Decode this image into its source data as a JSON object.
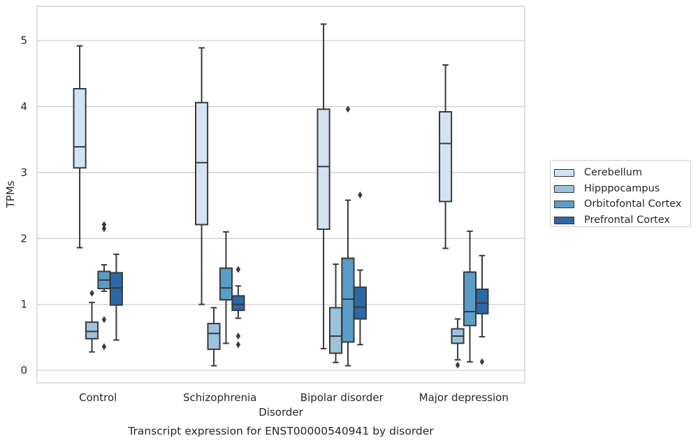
{
  "chart_data": {
    "type": "box",
    "title": "Transcript expression for ENST00000540941 by disorder",
    "xlabel": "Disorder",
    "ylabel": "TPMs",
    "ylim": [
      -0.19,
      5.52
    ],
    "yticks": [
      0,
      1,
      2,
      3,
      4,
      5
    ],
    "grid": true,
    "legend_position": "right",
    "categories": [
      "Control",
      "Schizophrenia",
      "Bipolar disorder",
      "Major depression"
    ],
    "series": [
      {
        "name": "Cerebellum",
        "color": "#d4e3f2",
        "boxes": [
          {
            "whislo": 1.86,
            "q1": 3.07,
            "med": 3.39,
            "q3": 4.27,
            "whishi": 4.92,
            "fliers": []
          },
          {
            "whislo": 1.0,
            "q1": 2.21,
            "med": 3.15,
            "q3": 4.06,
            "whishi": 4.89,
            "fliers": []
          },
          {
            "whislo": 0.33,
            "q1": 2.14,
            "med": 3.09,
            "q3": 3.96,
            "whishi": 5.25,
            "fliers": []
          },
          {
            "whislo": 1.85,
            "q1": 2.56,
            "med": 3.44,
            "q3": 3.92,
            "whishi": 4.63,
            "fliers": []
          }
        ]
      },
      {
        "name": "Hipppocampus",
        "color": "#9cc2dc",
        "boxes": [
          {
            "whislo": 0.28,
            "q1": 0.48,
            "med": 0.59,
            "q3": 0.73,
            "whishi": 1.03,
            "fliers": [
              1.17
            ]
          },
          {
            "whislo": 0.07,
            "q1": 0.32,
            "med": 0.56,
            "q3": 0.71,
            "whishi": 0.95,
            "fliers": []
          },
          {
            "whislo": 0.12,
            "q1": 0.26,
            "med": 0.52,
            "q3": 0.95,
            "whishi": 1.61,
            "fliers": []
          },
          {
            "whislo": 0.16,
            "q1": 0.41,
            "med": 0.52,
            "q3": 0.63,
            "whishi": 0.78,
            "fliers": [
              0.08
            ]
          }
        ]
      },
      {
        "name": "Orbitofontal Cortex",
        "color": "#5a9dc8",
        "boxes": [
          {
            "whislo": 1.2,
            "q1": 1.24,
            "med": 1.37,
            "q3": 1.5,
            "whishi": 1.6,
            "fliers": [
              2.21,
              2.15,
              0.77,
              0.36
            ]
          },
          {
            "whislo": 0.41,
            "q1": 1.07,
            "med": 1.25,
            "q3": 1.55,
            "whishi": 2.1,
            "fliers": []
          },
          {
            "whislo": 0.07,
            "q1": 0.43,
            "med": 1.08,
            "q3": 1.7,
            "whishi": 2.58,
            "fliers": [
              3.96
            ]
          },
          {
            "whislo": 0.13,
            "q1": 0.68,
            "med": 0.89,
            "q3": 1.49,
            "whishi": 2.11,
            "fliers": []
          }
        ]
      },
      {
        "name": "Prefrontal Cortex",
        "color": "#2a68a8",
        "boxes": [
          {
            "whislo": 0.46,
            "q1": 0.99,
            "med": 1.25,
            "q3": 1.48,
            "whishi": 1.76,
            "fliers": []
          },
          {
            "whislo": 0.79,
            "q1": 0.91,
            "med": 1.0,
            "q3": 1.13,
            "whishi": 1.28,
            "fliers": [
              1.53,
              0.52,
              0.39
            ]
          },
          {
            "whislo": 0.39,
            "q1": 0.78,
            "med": 0.96,
            "q3": 1.26,
            "whishi": 1.52,
            "fliers": [
              2.66
            ]
          },
          {
            "whislo": 0.51,
            "q1": 0.86,
            "med": 1.02,
            "q3": 1.23,
            "whishi": 1.74,
            "fliers": [
              0.13
            ]
          }
        ]
      }
    ]
  }
}
